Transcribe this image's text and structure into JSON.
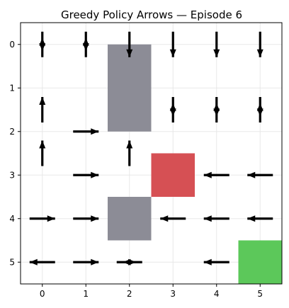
{
  "chart_data": {
    "type": "heatmap",
    "title": "Greedy Policy Arrows — Episode 6",
    "xlabel": "",
    "ylabel": "",
    "xlim": [
      -0.5,
      5.5
    ],
    "ylim": [
      5.5,
      -0.5
    ],
    "xticks": [
      "0",
      "1",
      "2",
      "3",
      "4",
      "5"
    ],
    "yticks": [
      "0",
      "1",
      "2",
      "3",
      "4",
      "5"
    ],
    "grid": true,
    "cells": [
      {
        "kind": "wall",
        "row": 0.5,
        "col": 2,
        "rows": 2,
        "cols": 1,
        "color": "#8c8c96"
      },
      {
        "kind": "wall",
        "row": 4,
        "col": 2,
        "rows": 1,
        "cols": 1,
        "color": "#8c8c96"
      },
      {
        "kind": "danger",
        "row": 3,
        "col": 3,
        "rows": 1,
        "cols": 1,
        "color": "#d65054"
      },
      {
        "kind": "goal",
        "row": 5,
        "col": 5,
        "rows": 1,
        "cols": 1,
        "color": "#5cc85a"
      }
    ],
    "arrows": [
      {
        "row": 0,
        "col": 0,
        "dir": "updown"
      },
      {
        "row": 0,
        "col": 1,
        "dir": "updown"
      },
      {
        "row": 0,
        "col": 2,
        "dir": "down"
      },
      {
        "row": 0,
        "col": 3,
        "dir": "down"
      },
      {
        "row": 0,
        "col": 4,
        "dir": "down"
      },
      {
        "row": 0,
        "col": 5,
        "dir": "down"
      },
      {
        "row": 1.5,
        "col": 0,
        "dir": "up"
      },
      {
        "row": 1.5,
        "col": 3,
        "dir": "updown"
      },
      {
        "row": 1.5,
        "col": 4,
        "dir": "updown"
      },
      {
        "row": 1.5,
        "col": 5,
        "dir": "updown"
      },
      {
        "row": 2,
        "col": 1,
        "dir": "right"
      },
      {
        "row": 2.5,
        "col": 0,
        "dir": "up"
      },
      {
        "row": 2.5,
        "col": 2,
        "dir": "up"
      },
      {
        "row": 3,
        "col": 1,
        "dir": "right"
      },
      {
        "row": 3,
        "col": 4,
        "dir": "left"
      },
      {
        "row": 3,
        "col": 5,
        "dir": "left"
      },
      {
        "row": 4,
        "col": 0,
        "dir": "right"
      },
      {
        "row": 4,
        "col": 1,
        "dir": "right"
      },
      {
        "row": 4,
        "col": 3,
        "dir": "left"
      },
      {
        "row": 4,
        "col": 4,
        "dir": "left"
      },
      {
        "row": 4,
        "col": 5,
        "dir": "left"
      },
      {
        "row": 5,
        "col": 0,
        "dir": "left"
      },
      {
        "row": 5,
        "col": 1,
        "dir": "right"
      },
      {
        "row": 5,
        "col": 2,
        "dir": "leftright"
      },
      {
        "row": 5,
        "col": 4,
        "dir": "left"
      }
    ]
  }
}
